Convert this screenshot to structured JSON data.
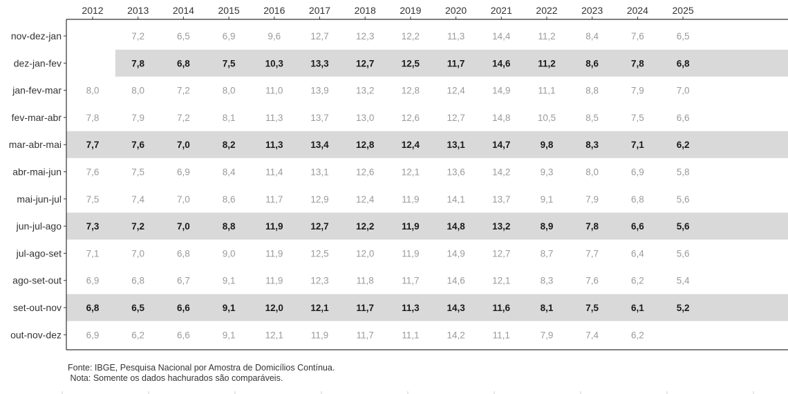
{
  "chart_data": {
    "type": "table",
    "title": "",
    "columns": [
      "2012",
      "2013",
      "2014",
      "2015",
      "2016",
      "2017",
      "2018",
      "2019",
      "2020",
      "2021",
      "2022",
      "2023",
      "2024",
      "2025"
    ],
    "rows": [
      {
        "label": "nov-dez-jan",
        "highlighted": false,
        "values": [
          null,
          7.2,
          6.5,
          6.9,
          9.6,
          12.7,
          12.3,
          12.2,
          11.3,
          14.4,
          11.2,
          8.4,
          7.6,
          6.5
        ]
      },
      {
        "label": "dez-jan-fev",
        "highlighted": true,
        "values": [
          null,
          7.8,
          6.8,
          7.5,
          10.3,
          13.3,
          12.7,
          12.5,
          11.7,
          14.6,
          11.2,
          8.6,
          7.8,
          6.8
        ]
      },
      {
        "label": "jan-fev-mar",
        "highlighted": false,
        "values": [
          8.0,
          8.0,
          7.2,
          8.0,
          11.0,
          13.9,
          13.2,
          12.8,
          12.4,
          14.9,
          11.1,
          8.8,
          7.9,
          7.0
        ]
      },
      {
        "label": "fev-mar-abr",
        "highlighted": false,
        "values": [
          7.8,
          7.9,
          7.2,
          8.1,
          11.3,
          13.7,
          13.0,
          12.6,
          12.7,
          14.8,
          10.5,
          8.5,
          7.5,
          6.6
        ]
      },
      {
        "label": "mar-abr-mai",
        "highlighted": true,
        "values": [
          7.7,
          7.6,
          7.0,
          8.2,
          11.3,
          13.4,
          12.8,
          12.4,
          13.1,
          14.7,
          9.8,
          8.3,
          7.1,
          6.2
        ]
      },
      {
        "label": "abr-mai-jun",
        "highlighted": false,
        "values": [
          7.6,
          7.5,
          6.9,
          8.4,
          11.4,
          13.1,
          12.6,
          12.1,
          13.6,
          14.2,
          9.3,
          8.0,
          6.9,
          5.8
        ]
      },
      {
        "label": "mai-jun-jul",
        "highlighted": false,
        "values": [
          7.5,
          7.4,
          7.0,
          8.6,
          11.7,
          12.9,
          12.4,
          11.9,
          14.1,
          13.7,
          9.1,
          7.9,
          6.8,
          5.6
        ]
      },
      {
        "label": "jun-jul-ago",
        "highlighted": true,
        "values": [
          7.3,
          7.2,
          7.0,
          8.8,
          11.9,
          12.7,
          12.2,
          11.9,
          14.8,
          13.2,
          8.9,
          7.8,
          6.6,
          5.6
        ]
      },
      {
        "label": "jul-ago-set",
        "highlighted": false,
        "values": [
          7.1,
          7.0,
          6.8,
          9.0,
          11.9,
          12.5,
          12.0,
          11.9,
          14.9,
          12.7,
          8.7,
          7.7,
          6.4,
          5.6
        ]
      },
      {
        "label": "ago-set-out",
        "highlighted": false,
        "values": [
          6.9,
          6.8,
          6.7,
          9.1,
          11.9,
          12.3,
          11.8,
          11.7,
          14.6,
          12.1,
          8.3,
          7.6,
          6.2,
          5.4
        ]
      },
      {
        "label": "set-out-nov",
        "highlighted": true,
        "values": [
          6.8,
          6.5,
          6.6,
          9.1,
          12.0,
          12.1,
          11.7,
          11.3,
          14.3,
          11.6,
          8.1,
          7.5,
          6.1,
          5.2
        ]
      },
      {
        "label": "out-nov-dez",
        "highlighted": false,
        "values": [
          6.9,
          6.2,
          6.6,
          9.1,
          12.1,
          11.9,
          11.7,
          11.1,
          14.2,
          11.1,
          7.9,
          7.4,
          6.2,
          null
        ]
      }
    ],
    "decimal_separator": ",",
    "colors": {
      "highlight_band": "#d9d9d9",
      "highlight_text": "#1a1a1a",
      "normal_text": "#9a9a9a",
      "axis": "#333333"
    }
  },
  "footnote": {
    "source": "Fonte: IBGE, Pesquisa Nacional por Amostra de Domicílios Contínua.",
    "note": " Nota: Somente os dados hachurados são comparáveis."
  }
}
